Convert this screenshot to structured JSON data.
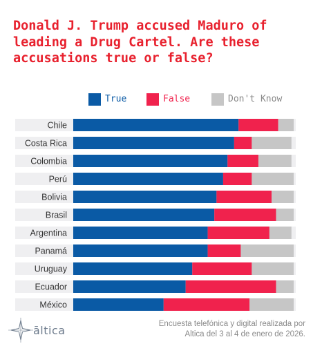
{
  "title": "Donald J. Trump accused Maduro of leading a Drug Cartel. Are these accusations true or false?",
  "colors": {
    "true": "#0a5aa5",
    "false": "#f0224d",
    "dont_know": "#c6c6c6",
    "row_band": "#efeff1",
    "title": "#e8212e"
  },
  "chart_data": {
    "type": "bar",
    "orientation": "horizontal",
    "stacked": true,
    "categories": [
      "Chile",
      "Costa Rica",
      "Colombia",
      "Perú",
      "Bolivia",
      "Brasil",
      "Argentina",
      "Panamá",
      "Uruguay",
      "Ecuador",
      "México"
    ],
    "series": [
      {
        "name": "True",
        "values": [
          75,
          73,
          70,
          68,
          65,
          64,
          61,
          61,
          54,
          51,
          41
        ]
      },
      {
        "name": "False",
        "values": [
          18,
          8,
          14,
          13,
          25,
          28,
          28,
          15,
          27,
          41,
          39
        ]
      },
      {
        "name": "Don't Know",
        "values": [
          7,
          18,
          15,
          19,
          10,
          8,
          10,
          24,
          19,
          8,
          20
        ]
      }
    ],
    "xlim": [
      0,
      100
    ],
    "legend_position": "top"
  },
  "logo": {
    "name": "āltica",
    "icon": "sparkle-star-icon"
  },
  "source": {
    "line1": "Encuesta telefónica y digital realizada por",
    "line2": "Altica del 3 al 4 de enero de 2026."
  }
}
